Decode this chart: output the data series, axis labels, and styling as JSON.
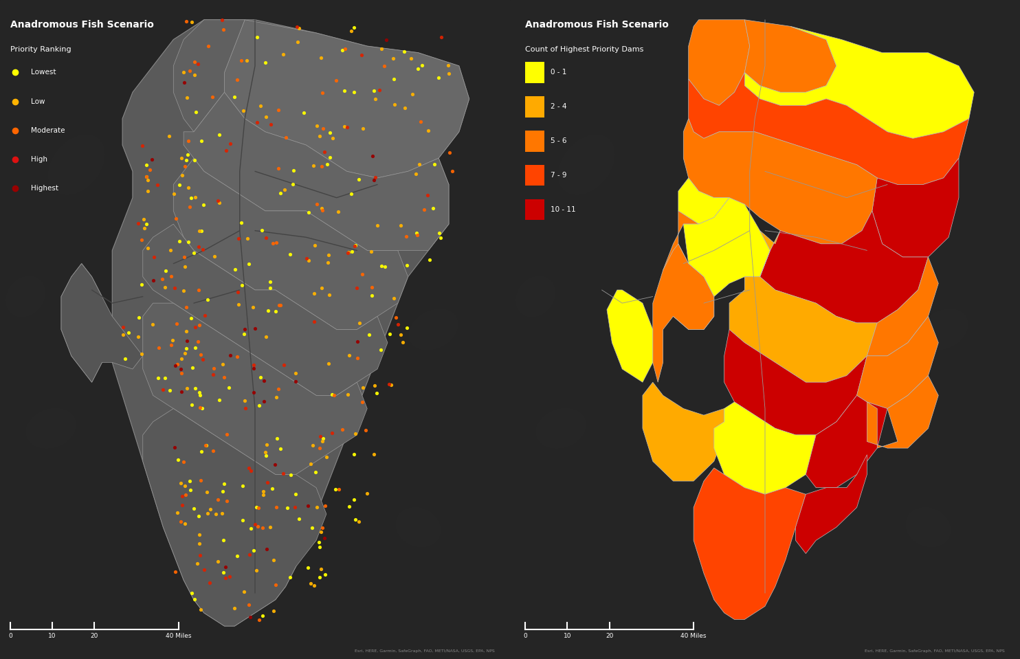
{
  "background_color": "#1e1e1e",
  "left_bg": "#282828",
  "right_bg": "#282828",
  "title_left": "Anadromous Fish Scenario",
  "subtitle_left": "Priority Ranking",
  "title_right": "Anadromous Fish Scenario",
  "subtitle_right": "Count of Highest Priority Dams",
  "legend_left_labels": [
    "Lowest",
    "Low",
    "Moderate",
    "High",
    "Highest"
  ],
  "legend_left_colors": [
    "#ffff00",
    "#ffb300",
    "#ff6600",
    "#dd1111",
    "#990000"
  ],
  "legend_right_labels": [
    "0 - 1",
    "2 - 4",
    "5 - 6",
    "7 - 9",
    "10 - 11"
  ],
  "legend_right_colors": [
    "#ffff00",
    "#ffaa00",
    "#ff7700",
    "#ff4400",
    "#cc0000"
  ],
  "scalebar_labels": [
    "0",
    "10",
    "20",
    "40 Miles"
  ],
  "attribution": "Esri, HERE, Garmin, SafeGraph, FAO, METI/NASA, USGS, EPA, NPS",
  "dot_colors": {
    "lowest": "#ffff00",
    "low": "#ffb300",
    "moderate": "#ff6600",
    "high": "#dd2200",
    "highest": "#990000"
  }
}
